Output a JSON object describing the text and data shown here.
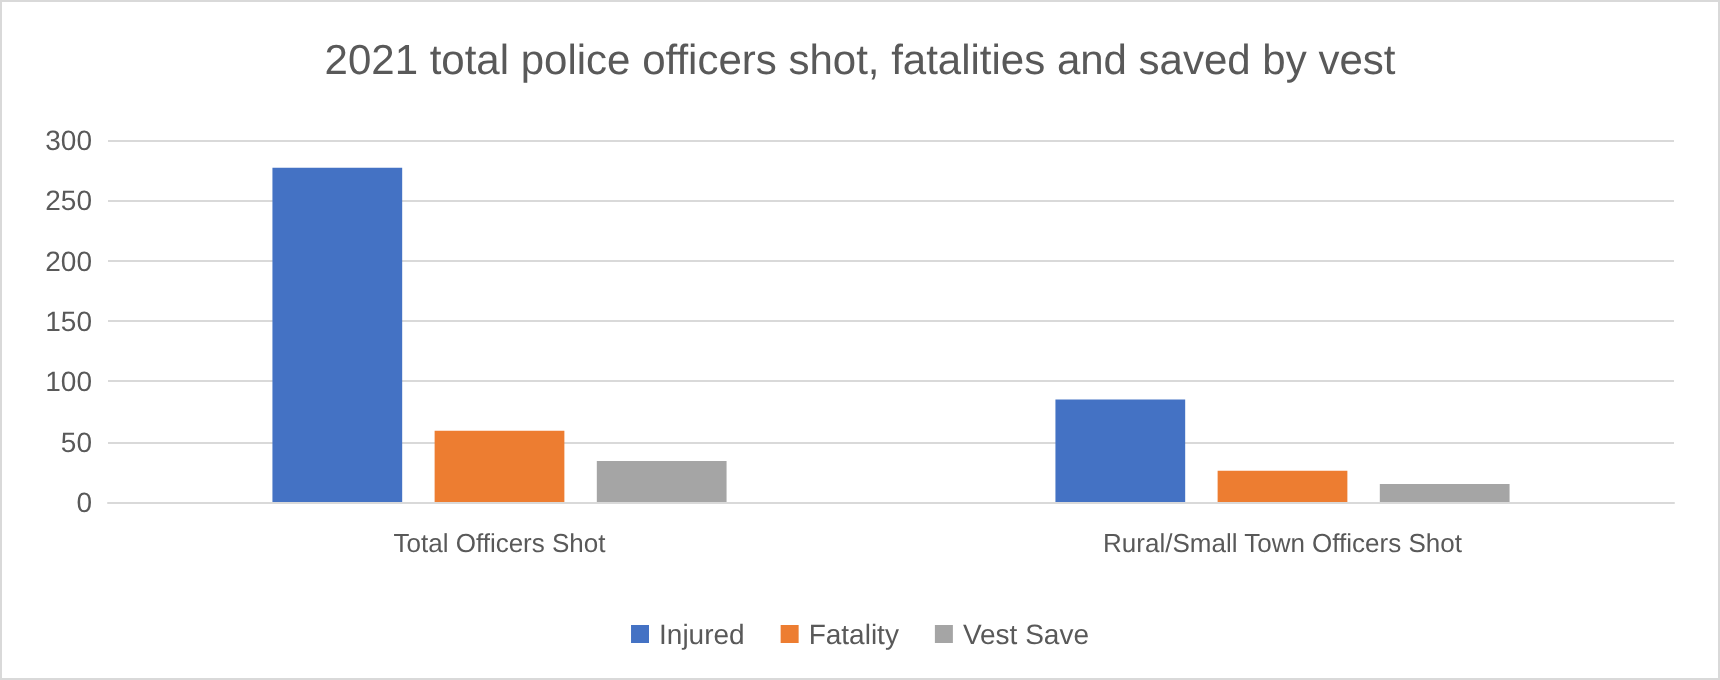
{
  "chart_data": {
    "type": "bar",
    "title": "2021 total police officers shot, fatalities and saved by vest",
    "categories": [
      "Total Officers Shot",
      "Rural/Small Town Officers Shot"
    ],
    "series": [
      {
        "name": "Injured",
        "color": "#4472c4",
        "values": [
          277,
          85
        ]
      },
      {
        "name": "Fatality",
        "color": "#ed7d31",
        "values": [
          59,
          26
        ]
      },
      {
        "name": "Vest Save",
        "color": "#a5a5a5",
        "values": [
          34,
          15
        ]
      }
    ],
    "ylim": [
      0,
      300
    ],
    "yticks": [
      0,
      50,
      100,
      150,
      200,
      250,
      300
    ],
    "grid": "y",
    "legend": "bottom"
  }
}
